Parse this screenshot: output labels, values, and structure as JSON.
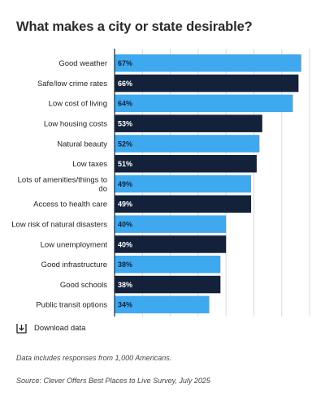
{
  "chart_data": {
    "type": "bar",
    "orientation": "horizontal",
    "title": "What makes a city or state desirable?",
    "categories": [
      "Good weather",
      "Safe/low crime rates",
      "Low cost of living",
      "Low housing costs",
      "Natural beauty",
      "Low taxes",
      "Lots of amenities/things to do",
      "Access to health care",
      "Low risk of natural disasters",
      "Low unemployment",
      "Good infrastructure",
      "Good schools",
      "Public transit options"
    ],
    "category_lines": [
      [
        "Good weather"
      ],
      [
        "Safe/low crime rates"
      ],
      [
        "Low cost of living"
      ],
      [
        "Low housing costs"
      ],
      [
        "Natural beauty"
      ],
      [
        "Low taxes"
      ],
      [
        "Lots of amenities/things to",
        "do"
      ],
      [
        "Access to health care"
      ],
      [
        "Low risk of natural disasters"
      ],
      [
        "Low unemployment"
      ],
      [
        "Good infrastructure"
      ],
      [
        "Good schools"
      ],
      [
        "Public transit options"
      ]
    ],
    "values": [
      67,
      66,
      64,
      53,
      52,
      51,
      49,
      49,
      40,
      40,
      38,
      38,
      34
    ],
    "value_labels": [
      "67%",
      "66%",
      "64%",
      "53%",
      "52%",
      "51%",
      "49%",
      "49%",
      "40%",
      "40%",
      "38%",
      "38%",
      "34%"
    ],
    "xlim": [
      0,
      70
    ],
    "grid": true,
    "colors": {
      "light": "#3fa9ef",
      "dark": "#13213a",
      "grid": "#d9d9d9",
      "axis": "#333333",
      "label_light": "#13213a",
      "label_dark": "#ffffff"
    },
    "bar_color_pattern": [
      "light",
      "dark"
    ]
  },
  "download": {
    "label": "Download data",
    "icon": "download-icon"
  },
  "note": "Data includes responses from 1,000 Americans.",
  "source": "Source: Clever Offers Best Places to Live Survey, July 2025"
}
